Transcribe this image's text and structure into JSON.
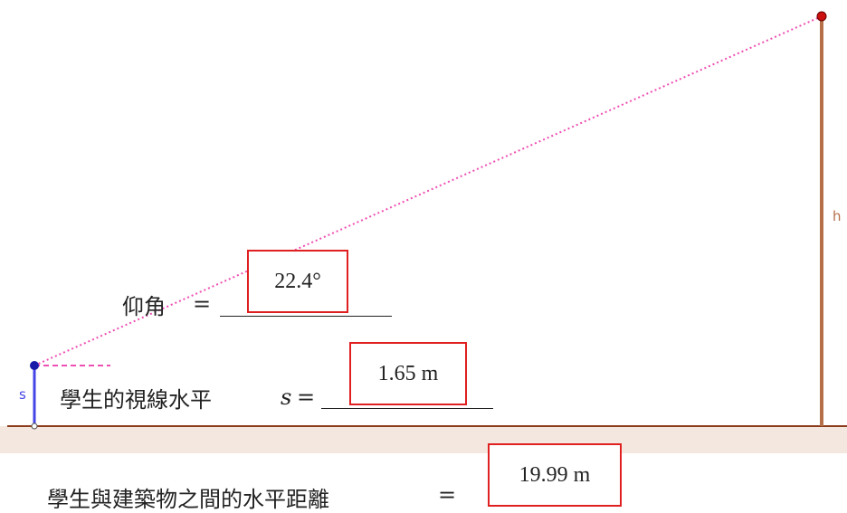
{
  "labels": {
    "angle_label": "仰角",
    "angle_eq": "=",
    "eye_label": "學生的視線水平",
    "eye_var": "s",
    "eye_eq": "=",
    "dist_label": "學生與建築物之間的水平距離",
    "dist_eq": "="
  },
  "values": {
    "angle": "22.4°",
    "eye_level": "1.65 m",
    "distance": "19.99 m"
  },
  "segment_labels": {
    "student": "s",
    "building": "h"
  },
  "colors": {
    "ground": "#8b3a1a",
    "ground_band": "#f3e7df",
    "student_segment": "#4545e6",
    "building": "#b5704a",
    "sight_line": "#ee4fb2",
    "box_border": "#e02020"
  }
}
